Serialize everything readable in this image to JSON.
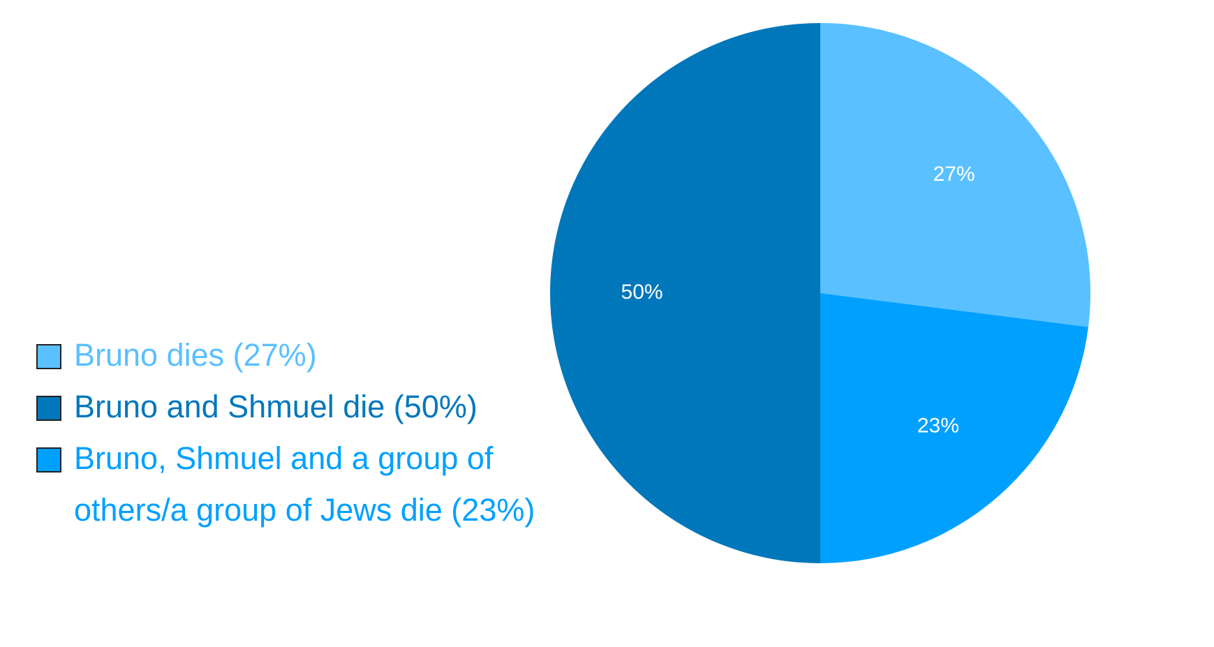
{
  "chart_data": {
    "type": "pie",
    "categories": [
      "Bruno dies (27%)",
      "Bruno and Shmuel die (50%)",
      "Bruno, Shmuel and a group of others/a group of Jews die (23%)"
    ],
    "values": [
      27,
      50,
      23
    ],
    "value_labels": [
      "27%",
      "50%",
      "23%"
    ],
    "colors": [
      "#5ac0ff",
      "#0077bb",
      "#00a0ff"
    ]
  }
}
